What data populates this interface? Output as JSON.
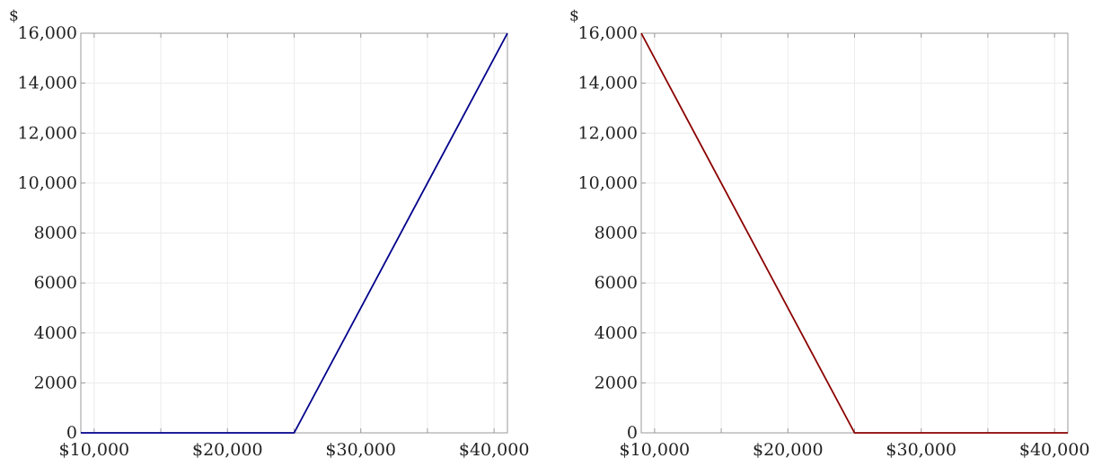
{
  "chart_data": [
    {
      "type": "line",
      "title": "",
      "xlabel": "",
      "ylabel": "$",
      "xlim": [
        9000,
        41000
      ],
      "ylim": [
        0,
        16000
      ],
      "grid": true,
      "xticks": [
        10000,
        15000,
        20000,
        25000,
        30000,
        35000,
        40000
      ],
      "x_tick_labels": [
        "$10,000",
        "$20,000",
        "$30,000",
        "$40,000"
      ],
      "x_tick_label_values": [
        10000,
        20000,
        30000,
        40000
      ],
      "y_tick_labels": [
        "0",
        "2000",
        "4000",
        "6000",
        "8000",
        "10,000",
        "12,000",
        "14,000",
        "16,000"
      ],
      "y_tick_label_values": [
        0,
        2000,
        4000,
        6000,
        8000,
        10000,
        12000,
        14000,
        16000
      ],
      "series": [
        {
          "color": "#00008b",
          "x": [
            9000,
            25000,
            41000
          ],
          "y": [
            0,
            0,
            16000
          ]
        }
      ]
    },
    {
      "type": "line",
      "title": "",
      "xlabel": "",
      "ylabel": "$",
      "xlim": [
        9000,
        41000
      ],
      "ylim": [
        0,
        16000
      ],
      "grid": true,
      "xticks": [
        10000,
        15000,
        20000,
        25000,
        30000,
        35000,
        40000
      ],
      "x_tick_labels": [
        "$10,000",
        "$20,000",
        "$30,000",
        "$40,000"
      ],
      "x_tick_label_values": [
        10000,
        20000,
        30000,
        40000
      ],
      "y_tick_labels": [
        "0",
        "2000",
        "4000",
        "6000",
        "8000",
        "10,000",
        "12,000",
        "14,000",
        "16,000"
      ],
      "y_tick_label_values": [
        0,
        2000,
        4000,
        6000,
        8000,
        10000,
        12000,
        14000,
        16000
      ],
      "series": [
        {
          "color": "#8b0000",
          "x": [
            9000,
            25000,
            41000
          ],
          "y": [
            16000,
            0,
            0
          ]
        }
      ]
    }
  ]
}
